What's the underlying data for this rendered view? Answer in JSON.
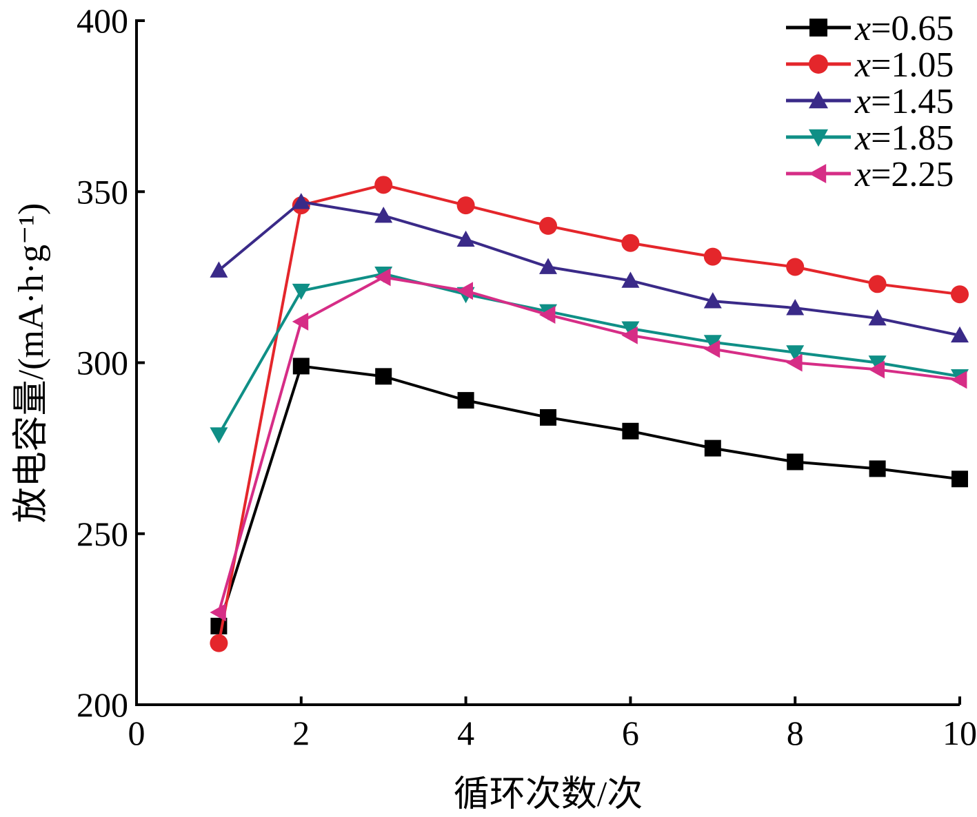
{
  "chart_data": {
    "type": "line",
    "xlabel": "循环次数/次",
    "ylabel": "放电容量/(mA·h·g⁻¹)",
    "xlim": [
      0,
      10
    ],
    "ylim": [
      200,
      400
    ],
    "xticks": [
      0,
      2,
      4,
      6,
      8,
      10
    ],
    "yticks": [
      200,
      250,
      300,
      350,
      400
    ],
    "grid": false,
    "legend_position": "top-right",
    "x": [
      1,
      2,
      3,
      4,
      5,
      6,
      7,
      8,
      9,
      10
    ],
    "series": [
      {
        "name": "x=0.65",
        "var": "x",
        "value": "=0.65",
        "color": "#000000",
        "marker": "square",
        "values": [
          223,
          299,
          296,
          289,
          284,
          280,
          275,
          271,
          269,
          266
        ]
      },
      {
        "name": "x=1.05",
        "var": "x",
        "value": "=1.05",
        "color": "#e4262b",
        "marker": "circle",
        "values": [
          218,
          346,
          352,
          346,
          340,
          335,
          331,
          328,
          323,
          320
        ]
      },
      {
        "name": "x=1.45",
        "var": "x",
        "value": "=1.45",
        "color": "#3a2a88",
        "marker": "triangle-up",
        "values": [
          327,
          347,
          343,
          336,
          328,
          324,
          318,
          316,
          313,
          308
        ]
      },
      {
        "name": "x=1.85",
        "var": "x",
        "value": "=1.85",
        "color": "#0f8f86",
        "marker": "triangle-down",
        "values": [
          279,
          321,
          326,
          320,
          315,
          310,
          306,
          303,
          300,
          296
        ]
      },
      {
        "name": "x=2.25",
        "var": "x",
        "value": "=2.25",
        "color": "#d62d86",
        "marker": "triangle-left",
        "values": [
          227,
          312,
          325,
          321,
          314,
          308,
          304,
          300,
          298,
          295
        ]
      }
    ]
  }
}
